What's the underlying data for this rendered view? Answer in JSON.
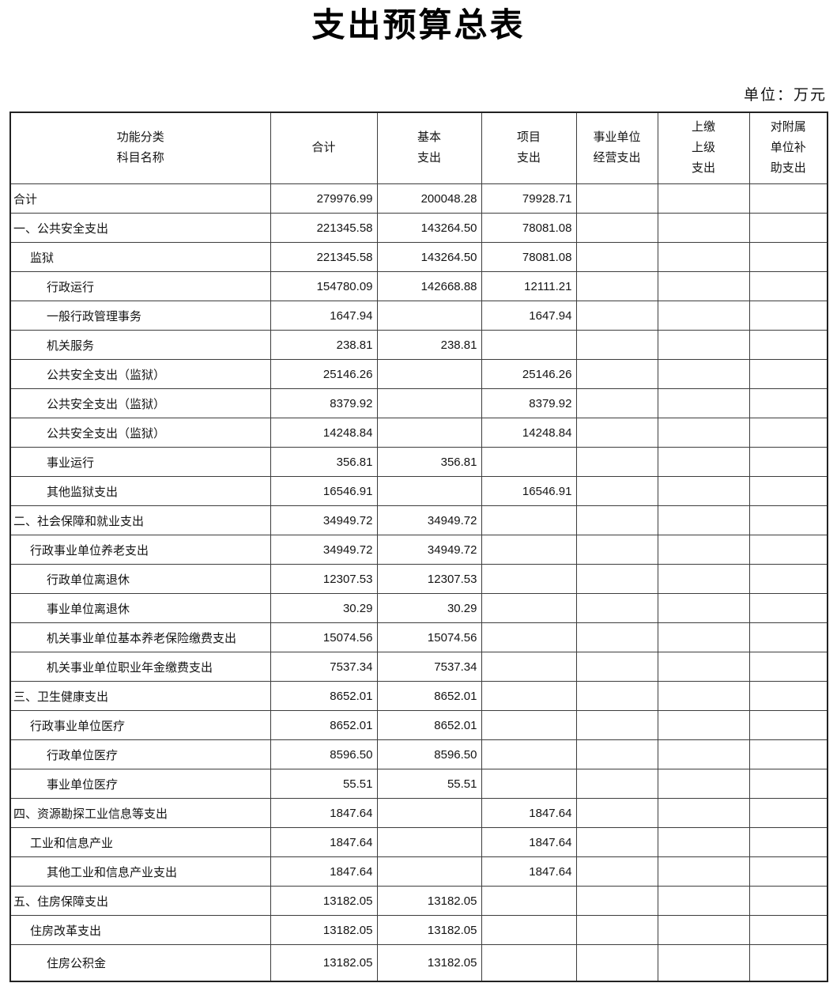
{
  "title": "支出预算总表",
  "unit_label": "单位：万元",
  "table": {
    "headers": {
      "name": "功能分类\n科目名称",
      "total": "合计",
      "basic": "基本\n支出",
      "project": "项目\n支出",
      "operating": "事业单位\n经营支出",
      "upper": "上缴\n上级\n支出",
      "subsidy": "对附属\n单位补\n助支出"
    },
    "rows": [
      {
        "name": "合计",
        "level": 0,
        "total": "279976.99",
        "basic": "200048.28",
        "project": "79928.71",
        "operating": "",
        "upper": "",
        "subsidy": ""
      },
      {
        "name": "一、公共安全支出",
        "level": 0,
        "total": "221345.58",
        "basic": "143264.50",
        "project": "78081.08",
        "operating": "",
        "upper": "",
        "subsidy": ""
      },
      {
        "name": "监狱",
        "level": 1,
        "total": "221345.58",
        "basic": "143264.50",
        "project": "78081.08",
        "operating": "",
        "upper": "",
        "subsidy": ""
      },
      {
        "name": "行政运行",
        "level": 2,
        "total": "154780.09",
        "basic": "142668.88",
        "project": "12111.21",
        "operating": "",
        "upper": "",
        "subsidy": ""
      },
      {
        "name": "一般行政管理事务",
        "level": 2,
        "total": "1647.94",
        "basic": "",
        "project": "1647.94",
        "operating": "",
        "upper": "",
        "subsidy": ""
      },
      {
        "name": "机关服务",
        "level": 2,
        "total": "238.81",
        "basic": "238.81",
        "project": "",
        "operating": "",
        "upper": "",
        "subsidy": ""
      },
      {
        "name": "公共安全支出（监狱）",
        "level": 2,
        "total": "25146.26",
        "basic": "",
        "project": "25146.26",
        "operating": "",
        "upper": "",
        "subsidy": ""
      },
      {
        "name": "公共安全支出（监狱）",
        "level": 2,
        "total": "8379.92",
        "basic": "",
        "project": "8379.92",
        "operating": "",
        "upper": "",
        "subsidy": ""
      },
      {
        "name": "公共安全支出（监狱）",
        "level": 2,
        "total": "14248.84",
        "basic": "",
        "project": "14248.84",
        "operating": "",
        "upper": "",
        "subsidy": ""
      },
      {
        "name": "事业运行",
        "level": 2,
        "total": "356.81",
        "basic": "356.81",
        "project": "",
        "operating": "",
        "upper": "",
        "subsidy": ""
      },
      {
        "name": "其他监狱支出",
        "level": 2,
        "total": "16546.91",
        "basic": "",
        "project": "16546.91",
        "operating": "",
        "upper": "",
        "subsidy": ""
      },
      {
        "name": "二、社会保障和就业支出",
        "level": 0,
        "total": "34949.72",
        "basic": "34949.72",
        "project": "",
        "operating": "",
        "upper": "",
        "subsidy": ""
      },
      {
        "name": "行政事业单位养老支出",
        "level": 1,
        "total": "34949.72",
        "basic": "34949.72",
        "project": "",
        "operating": "",
        "upper": "",
        "subsidy": ""
      },
      {
        "name": "行政单位离退休",
        "level": 2,
        "total": "12307.53",
        "basic": "12307.53",
        "project": "",
        "operating": "",
        "upper": "",
        "subsidy": ""
      },
      {
        "name": "事业单位离退休",
        "level": 2,
        "total": "30.29",
        "basic": "30.29",
        "project": "",
        "operating": "",
        "upper": "",
        "subsidy": ""
      },
      {
        "name": "机关事业单位基本养老保险缴费支出",
        "level": 2,
        "total": "15074.56",
        "basic": "15074.56",
        "project": "",
        "operating": "",
        "upper": "",
        "subsidy": ""
      },
      {
        "name": "机关事业单位职业年金缴费支出",
        "level": 2,
        "total": "7537.34",
        "basic": "7537.34",
        "project": "",
        "operating": "",
        "upper": "",
        "subsidy": ""
      },
      {
        "name": "三、卫生健康支出",
        "level": 0,
        "total": "8652.01",
        "basic": "8652.01",
        "project": "",
        "operating": "",
        "upper": "",
        "subsidy": ""
      },
      {
        "name": "行政事业单位医疗",
        "level": 1,
        "total": "8652.01",
        "basic": "8652.01",
        "project": "",
        "operating": "",
        "upper": "",
        "subsidy": ""
      },
      {
        "name": "行政单位医疗",
        "level": 2,
        "total": "8596.50",
        "basic": "8596.50",
        "project": "",
        "operating": "",
        "upper": "",
        "subsidy": ""
      },
      {
        "name": "事业单位医疗",
        "level": 2,
        "total": "55.51",
        "basic": "55.51",
        "project": "",
        "operating": "",
        "upper": "",
        "subsidy": ""
      },
      {
        "name": "四、资源勘探工业信息等支出",
        "level": 0,
        "total": "1847.64",
        "basic": "",
        "project": "1847.64",
        "operating": "",
        "upper": "",
        "subsidy": ""
      },
      {
        "name": "工业和信息产业",
        "level": 1,
        "total": "1847.64",
        "basic": "",
        "project": "1847.64",
        "operating": "",
        "upper": "",
        "subsidy": ""
      },
      {
        "name": "其他工业和信息产业支出",
        "level": 2,
        "total": "1847.64",
        "basic": "",
        "project": "1847.64",
        "operating": "",
        "upper": "",
        "subsidy": ""
      },
      {
        "name": "五、住房保障支出",
        "level": 0,
        "total": "13182.05",
        "basic": "13182.05",
        "project": "",
        "operating": "",
        "upper": "",
        "subsidy": ""
      },
      {
        "name": "住房改革支出",
        "level": 1,
        "total": "13182.05",
        "basic": "13182.05",
        "project": "",
        "operating": "",
        "upper": "",
        "subsidy": ""
      },
      {
        "name": "住房公积金",
        "level": 2,
        "total": "13182.05",
        "basic": "13182.05",
        "project": "",
        "operating": "",
        "upper": "",
        "subsidy": ""
      }
    ]
  }
}
